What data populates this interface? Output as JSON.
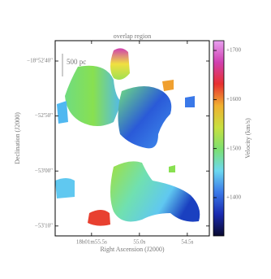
{
  "chart_data": {
    "type": "image",
    "title": "overlap region",
    "xlabel": "Right Ascension (J2000)",
    "ylabel": "Declination (J2000)",
    "colorbar_label": "Velocity (km/s)",
    "scale_bar": "500 pc",
    "xlim": [
      55.88,
      54.27
    ],
    "xticks": [
      {
        "value": 55.5,
        "label": "18h01m55.5s"
      },
      {
        "value": 55.0,
        "label": "55.0s"
      },
      {
        "value": 54.5,
        "label": "54.5s"
      }
    ],
    "ylim": [
      -3191.8,
      -3156.3
    ],
    "yticks": [
      {
        "value": -3160,
        "label": "−18°52'40\""
      },
      {
        "value": -3170,
        "label": "−52'50\""
      },
      {
        "value": -3180,
        "label": "−53'00\""
      },
      {
        "value": -3190,
        "label": "−53'10\""
      }
    ],
    "clim": [
      1322,
      1720
    ],
    "cticks": [
      {
        "value": 1400,
        "label": "+1400"
      },
      {
        "value": 1500,
        "label": "+1500"
      },
      {
        "value": 1600,
        "label": "+1600"
      },
      {
        "value": 1700,
        "label": "+1700"
      }
    ],
    "colormap": [
      "#0a0a30",
      "#1a2ab0",
      "#3a78e8",
      "#6cd8f0",
      "#7ce070",
      "#c8e040",
      "#f0b030",
      "#e83030",
      "#d040b0",
      "#e8a0f0"
    ]
  }
}
